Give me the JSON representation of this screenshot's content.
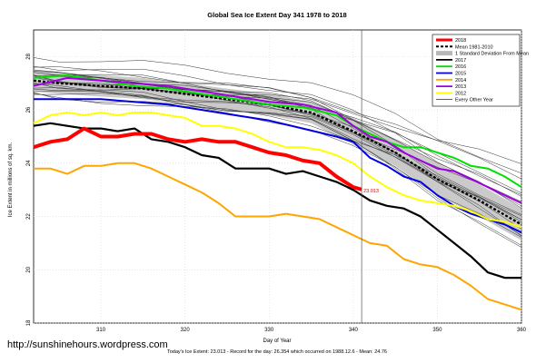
{
  "chart_data": {
    "type": "line",
    "title": "Global Sea Ice Extent Day 341 1978 to 2018",
    "xlabel": "Day of Year",
    "ylabel": "Ice Extent in millions of sq. km.",
    "xlim": [
      302,
      360
    ],
    "ylim": [
      18,
      29
    ],
    "xticks": [
      310,
      320,
      330,
      340,
      350,
      360
    ],
    "yticks": [
      18,
      20,
      22,
      24,
      26,
      28
    ],
    "grid": true,
    "legend_position": "top-right",
    "vline_x": 341,
    "annotation": {
      "text": "23.013",
      "x": 341,
      "y": 23.013
    },
    "caption": "Today's Ice Extent: 23.013 - Record for the day: 26.354 which occurred on 1988.12.6 - Mean: 24.76",
    "watermark": "http://sunshinehours.wordpress.com",
    "legend": [
      {
        "label": "2018",
        "color": "#ff0000",
        "style": "thick"
      },
      {
        "label": "Mean 1981-2010",
        "color": "#000000",
        "style": "dashed"
      },
      {
        "label": "1 Standard Deviation From Mean",
        "color": "#c0c0c0",
        "style": "band"
      },
      {
        "label": "2017",
        "color": "#000000",
        "style": "solid"
      },
      {
        "label": "2016",
        "color": "#00e000",
        "style": "solid"
      },
      {
        "label": "2015",
        "color": "#0000e0",
        "style": "solid"
      },
      {
        "label": "2014",
        "color": "#ffa500",
        "style": "solid"
      },
      {
        "label": "2013",
        "color": "#a000e0",
        "style": "solid"
      },
      {
        "label": "2012",
        "color": "#ffff00",
        "style": "solid"
      },
      {
        "label": "Every Other Year",
        "color": "#000000",
        "style": "thin"
      }
    ],
    "mean_band": {
      "x": [
        302,
        305,
        310,
        315,
        320,
        325,
        330,
        335,
        340,
        345,
        350,
        355,
        360
      ],
      "mean": [
        27.1,
        27.0,
        26.9,
        26.8,
        26.6,
        26.4,
        26.2,
        25.9,
        25.2,
        24.4,
        23.4,
        22.6,
        21.7
      ],
      "upper": [
        27.5,
        27.4,
        27.3,
        27.2,
        27.0,
        26.8,
        26.6,
        26.3,
        25.7,
        24.9,
        24.0,
        23.2,
        22.3
      ],
      "lower": [
        26.7,
        26.6,
        26.5,
        26.4,
        26.2,
        26.0,
        25.8,
        25.5,
        24.7,
        23.9,
        22.8,
        22.0,
        21.1
      ]
    },
    "series": [
      {
        "name": "2018",
        "color": "#ff0000",
        "width": 4,
        "x": [
          302,
          304,
          306,
          308,
          310,
          312,
          314,
          316,
          318,
          320,
          322,
          324,
          326,
          328,
          330,
          332,
          334,
          336,
          338,
          340,
          341
        ],
        "y": [
          24.6,
          24.8,
          24.9,
          25.3,
          25.0,
          25.0,
          25.1,
          25.1,
          24.9,
          24.8,
          24.9,
          24.8,
          24.8,
          24.6,
          24.4,
          24.3,
          24.1,
          24.0,
          23.5,
          23.1,
          23.013
        ]
      },
      {
        "name": "2017",
        "color": "#000000",
        "width": 2.2,
        "x": [
          302,
          304,
          306,
          308,
          310,
          312,
          314,
          316,
          318,
          320,
          322,
          324,
          326,
          328,
          330,
          332,
          334,
          336,
          338,
          340,
          342,
          344,
          346,
          348,
          350,
          352,
          354,
          356,
          358,
          360
        ],
        "y": [
          25.4,
          25.5,
          25.4,
          25.3,
          25.3,
          25.2,
          25.3,
          24.9,
          24.8,
          24.6,
          24.3,
          24.2,
          23.8,
          23.8,
          23.8,
          23.6,
          23.7,
          23.5,
          23.3,
          23.0,
          22.6,
          22.4,
          22.3,
          22.0,
          21.5,
          21.0,
          20.5,
          19.9,
          19.7,
          19.7
        ]
      },
      {
        "name": "2016",
        "color": "#00e000",
        "width": 2,
        "x": [
          302,
          306,
          310,
          314,
          318,
          322,
          326,
          330,
          334,
          338,
          340,
          342,
          344,
          346,
          348,
          350,
          352,
          354,
          356,
          358,
          360
        ],
        "y": [
          27.2,
          27.3,
          27.1,
          26.9,
          26.8,
          26.6,
          26.4,
          26.2,
          26.1,
          25.8,
          25.4,
          25.1,
          24.8,
          24.6,
          24.6,
          24.4,
          24.2,
          23.9,
          23.8,
          23.5,
          23.1
        ]
      },
      {
        "name": "2015",
        "color": "#0000e0",
        "width": 2,
        "x": [
          302,
          306,
          310,
          314,
          318,
          322,
          326,
          330,
          334,
          338,
          340,
          342,
          344,
          346,
          348,
          350,
          352,
          354,
          356,
          358,
          360
        ],
        "y": [
          26.4,
          26.4,
          26.4,
          26.3,
          26.2,
          26.0,
          25.8,
          25.6,
          25.3,
          25.0,
          24.8,
          24.2,
          23.9,
          23.5,
          23.3,
          22.8,
          22.4,
          22.1,
          21.9,
          21.7,
          21.4
        ]
      },
      {
        "name": "2014",
        "color": "#ffa500",
        "width": 2,
        "x": [
          302,
          304,
          306,
          308,
          310,
          312,
          314,
          316,
          318,
          320,
          322,
          324,
          326,
          328,
          330,
          332,
          334,
          336,
          338,
          340,
          342,
          344,
          346,
          348,
          350,
          352,
          354,
          356,
          358,
          360
        ],
        "y": [
          23.8,
          23.8,
          23.6,
          23.9,
          23.9,
          24.0,
          24.0,
          23.8,
          23.5,
          23.2,
          22.9,
          22.5,
          22.0,
          22.0,
          22.0,
          22.1,
          22.0,
          21.9,
          21.6,
          21.3,
          21.0,
          20.9,
          20.4,
          20.2,
          20.1,
          19.8,
          19.4,
          18.9,
          18.7,
          18.5
        ]
      },
      {
        "name": "2013",
        "color": "#a000e0",
        "width": 2,
        "x": [
          302,
          306,
          310,
          314,
          318,
          322,
          326,
          330,
          334,
          338,
          340,
          342,
          344,
          346,
          348,
          350,
          352,
          354,
          356,
          358,
          360
        ],
        "y": [
          26.9,
          27.2,
          27.1,
          27.0,
          26.9,
          26.7,
          26.5,
          26.3,
          26.2,
          25.9,
          25.4,
          25.0,
          24.8,
          24.4,
          24.1,
          23.8,
          23.7,
          23.4,
          23.1,
          22.8,
          22.5
        ]
      },
      {
        "name": "2012",
        "color": "#ffff00",
        "width": 2,
        "x": [
          302,
          304,
          306,
          308,
          310,
          312,
          314,
          316,
          318,
          320,
          322,
          324,
          326,
          328,
          330,
          332,
          334,
          336,
          338,
          340,
          342,
          344,
          346,
          348,
          350,
          352,
          354,
          356,
          358,
          360
        ],
        "y": [
          25.5,
          25.8,
          25.9,
          25.8,
          25.9,
          25.8,
          25.9,
          25.9,
          25.8,
          25.7,
          25.4,
          25.4,
          25.3,
          25.1,
          24.8,
          24.6,
          24.6,
          24.5,
          24.3,
          24.0,
          23.5,
          23.1,
          22.8,
          22.6,
          22.5,
          22.4,
          22.2,
          21.9,
          21.8,
          21.6
        ]
      }
    ],
    "other_years": [
      {
        "y0": 27.6,
        "y1": 22.3
      },
      {
        "y0": 27.4,
        "y1": 23.5
      },
      {
        "y0": 27.2,
        "y1": 21.4
      },
      {
        "y0": 27.0,
        "y1": 22.1
      },
      {
        "y0": 27.5,
        "y1": 21.8
      },
      {
        "y0": 26.8,
        "y1": 21.1
      },
      {
        "y0": 27.3,
        "y1": 22.7
      },
      {
        "y0": 26.9,
        "y1": 21.6
      },
      {
        "y0": 27.1,
        "y1": 23.0
      },
      {
        "y0": 26.6,
        "y1": 20.9
      },
      {
        "y0": 27.7,
        "y1": 22.5
      },
      {
        "y0": 26.7,
        "y1": 21.9
      },
      {
        "y0": 27.0,
        "y1": 23.9
      },
      {
        "y0": 27.4,
        "y1": 21.3
      },
      {
        "y0": 26.5,
        "y1": 22.0
      },
      {
        "y0": 27.2,
        "y1": 22.9
      },
      {
        "y0": 28.0,
        "y1": 23.6
      },
      {
        "y0": 26.9,
        "y1": 20.8
      },
      {
        "y0": 27.3,
        "y1": 21.7
      },
      {
        "y0": 26.8,
        "y1": 22.4
      }
    ]
  }
}
